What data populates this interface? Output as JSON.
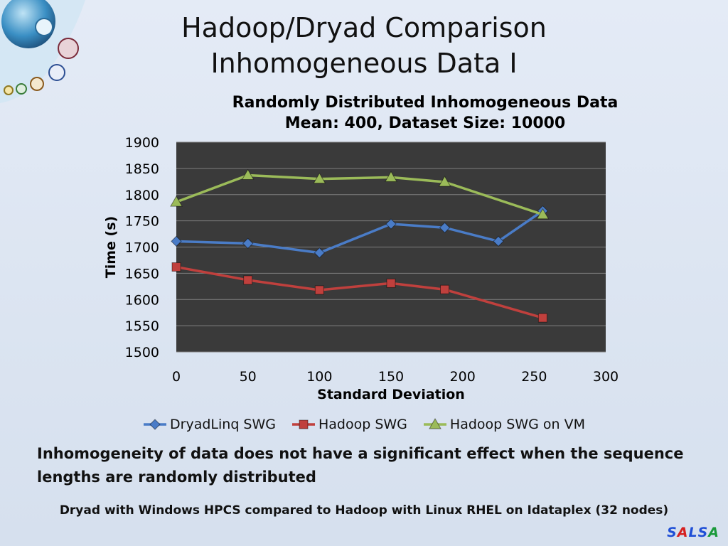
{
  "slide": {
    "title_line1": "Hadoop/Dryad Comparison",
    "title_line2": "Inhomogeneous Data I",
    "note": "Inhomogeneity of data does not have a significant effect when the sequence lengths are randomly distributed",
    "footer": "Dryad with Windows HPCS compared to Hadoop with Linux RHEL on Idataplex (32 nodes)",
    "brand": [
      "S",
      "A",
      "L",
      "S",
      "A"
    ],
    "brand_colors": [
      "#1f4fd6",
      "#d62020",
      "#1f4fd6",
      "#1f4fd6",
      "#1a9a3a"
    ]
  },
  "chart_data": {
    "type": "line",
    "title": "Randomly Distributed Inhomogeneous Data",
    "subtitle": "Mean: 400,  Dataset Size: 10000",
    "xlabel": "Standard Deviation",
    "ylabel": "Time (s)",
    "xlim": [
      0,
      300
    ],
    "ylim": [
      1500,
      1900
    ],
    "xticks": [
      0,
      50,
      100,
      150,
      200,
      250,
      300
    ],
    "yticks": [
      1500,
      1550,
      1600,
      1650,
      1700,
      1750,
      1800,
      1850,
      1900
    ],
    "grid": true,
    "plot_background": "#3a3a3a",
    "legend_position": "bottom",
    "series": [
      {
        "name": "DryadLinq SWG",
        "marker": "diamond",
        "color": "#4a7cc7",
        "x": [
          0,
          50,
          100,
          150,
          187.5,
          225,
          256
        ],
        "y": [
          1711,
          1707,
          1689,
          1744,
          1737,
          1711,
          1769
        ]
      },
      {
        "name": "Hadoop SWG",
        "marker": "square",
        "color": "#c0403d",
        "x": [
          0,
          50,
          100,
          150,
          187.5,
          256
        ],
        "y": [
          1662,
          1637,
          1618,
          1631,
          1619,
          1565
        ]
      },
      {
        "name": "Hadoop SWG on VM",
        "marker": "triangle",
        "color": "#9bbb59",
        "x": [
          0,
          50,
          100,
          150,
          187.5,
          256
        ],
        "y": [
          1786,
          1837,
          1830,
          1833,
          1824,
          1762
        ]
      }
    ]
  }
}
